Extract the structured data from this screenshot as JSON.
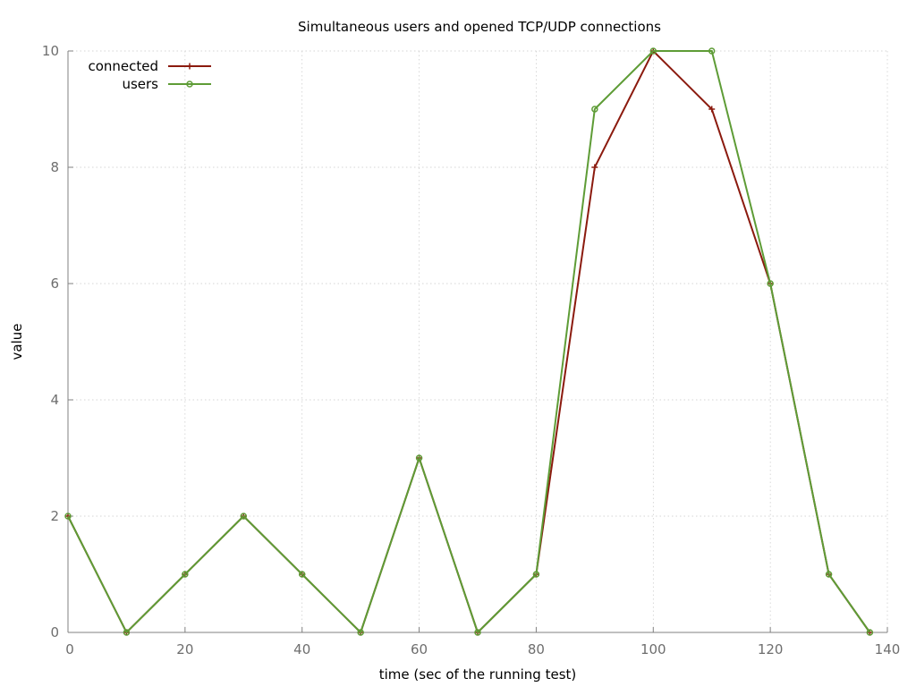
{
  "chart_data": {
    "type": "line",
    "title": "Simultaneous users and opened TCP/UDP connections",
    "xlabel": "time (sec of the running test)",
    "ylabel": "value",
    "xlim": [
      0,
      140
    ],
    "ylim": [
      0,
      10
    ],
    "xticks": [
      0,
      20,
      40,
      60,
      80,
      100,
      120,
      140
    ],
    "yticks": [
      0,
      2,
      4,
      6,
      8,
      10
    ],
    "grid": true,
    "legend_position": "top-left",
    "series": [
      {
        "name": "connected",
        "color": "#8b1a0e",
        "marker": "plus",
        "x": [
          0,
          10,
          20,
          30,
          40,
          50,
          60,
          70,
          80,
          90,
          100,
          110,
          120,
          130,
          137
        ],
        "y": [
          2,
          0,
          1,
          2,
          1,
          0,
          3,
          0,
          1,
          8,
          10,
          9,
          6,
          1,
          0
        ]
      },
      {
        "name": "users",
        "color": "#5e9c36",
        "marker": "circle",
        "x": [
          0,
          10,
          20,
          30,
          40,
          50,
          60,
          70,
          80,
          90,
          100,
          110,
          120,
          130,
          137
        ],
        "y": [
          2,
          0,
          1,
          2,
          1,
          0,
          3,
          0,
          1,
          9,
          10,
          10,
          6,
          1,
          0
        ]
      }
    ]
  }
}
